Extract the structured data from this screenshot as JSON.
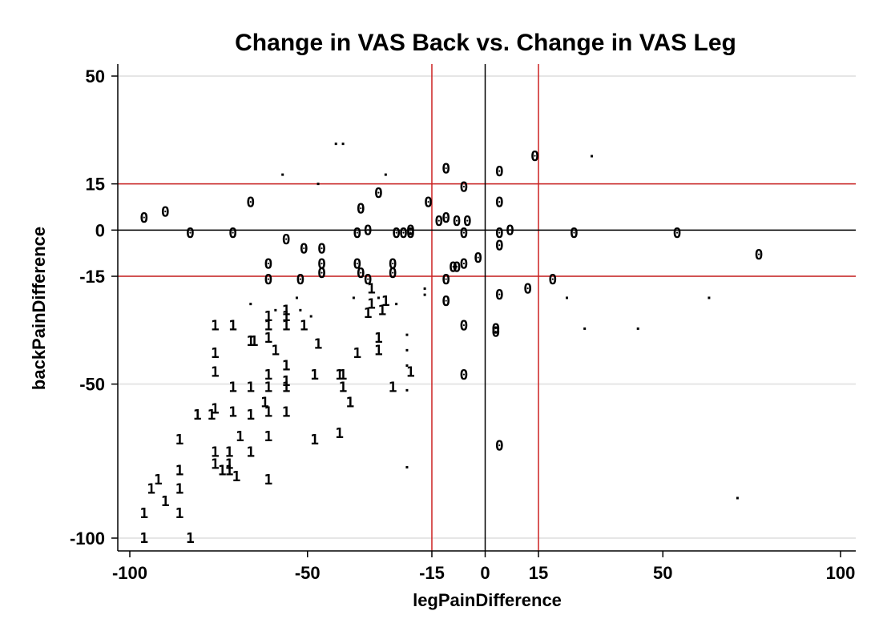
{
  "chart_data": {
    "type": "scatter",
    "title": "Change in VAS Back vs. Change in VAS Leg",
    "xlabel": "legPainDifference",
    "ylabel": "backPainDifference",
    "xlim": [
      -100,
      100
    ],
    "ylim": [
      -100,
      50
    ],
    "x_ticks": [
      -100,
      -50,
      -15,
      0,
      15,
      50,
      100
    ],
    "x_tick_labels": [
      "-100",
      "-50",
      "-15",
      "0",
      "15",
      "50",
      "100"
    ],
    "y_ticks": [
      -100,
      -50,
      -15,
      0,
      15,
      50
    ],
    "y_tick_labels": [
      "-100",
      "-50",
      "-15",
      "0",
      "15",
      "50"
    ],
    "grid": true,
    "reference_lines": {
      "red": {
        "x": [
          -15,
          15
        ],
        "y": [
          -15,
          15
        ],
        "color": "#cc2222"
      },
      "black": {
        "x": [
          0
        ],
        "y": [
          0
        ],
        "color": "#000000"
      }
    },
    "series": [
      {
        "name": "0",
        "marker": "0",
        "points": [
          [
            -96,
            4
          ],
          [
            -90,
            6
          ],
          [
            -83,
            -1
          ],
          [
            -71,
            -1
          ],
          [
            -66,
            9
          ],
          [
            -56,
            -3
          ],
          [
            -51,
            -6
          ],
          [
            -46,
            -6
          ],
          [
            -61,
            -11
          ],
          [
            -61,
            -16
          ],
          [
            -52,
            -16
          ],
          [
            -46,
            -11
          ],
          [
            -46,
            -14
          ],
          [
            -36,
            -11
          ],
          [
            -35,
            7
          ],
          [
            -35,
            -14
          ],
          [
            -36,
            -1
          ],
          [
            -33,
            -16
          ],
          [
            -33,
            0
          ],
          [
            -30,
            12
          ],
          [
            -26,
            -11
          ],
          [
            -25,
            -1
          ],
          [
            -26,
            -14
          ],
          [
            -23,
            -1
          ],
          [
            -21,
            0
          ],
          [
            -21,
            -1
          ],
          [
            -16,
            9
          ],
          [
            -13,
            3
          ],
          [
            -11,
            20
          ],
          [
            -11,
            4
          ],
          [
            -8,
            3
          ],
          [
            -9,
            -12
          ],
          [
            -8,
            -12
          ],
          [
            -6,
            14
          ],
          [
            -5,
            3
          ],
          [
            -6,
            -11
          ],
          [
            -6,
            -1
          ],
          [
            -2,
            -9
          ],
          [
            -11,
            -16
          ],
          [
            -11,
            -23
          ],
          [
            -6,
            -31
          ],
          [
            -6,
            -47
          ],
          [
            3,
            -32
          ],
          [
            3,
            -33
          ],
          [
            4,
            19
          ],
          [
            4,
            9
          ],
          [
            4,
            -1
          ],
          [
            4,
            -5
          ],
          [
            7,
            0
          ],
          [
            4,
            -21
          ],
          [
            4,
            -70
          ],
          [
            12,
            -19
          ],
          [
            14,
            24
          ],
          [
            19,
            -16
          ],
          [
            25,
            -1
          ],
          [
            54,
            -1
          ],
          [
            77,
            -8
          ]
        ]
      },
      {
        "name": "1",
        "marker": "1",
        "points": [
          [
            -96,
            -100
          ],
          [
            -96,
            -92
          ],
          [
            -94,
            -84
          ],
          [
            -92,
            -81
          ],
          [
            -90,
            -88
          ],
          [
            -86,
            -84
          ],
          [
            -86,
            -78
          ],
          [
            -86,
            -92
          ],
          [
            -86,
            -68
          ],
          [
            -83,
            -100
          ],
          [
            -81,
            -60
          ],
          [
            -77,
            -60
          ],
          [
            -76,
            -76
          ],
          [
            -76,
            -72
          ],
          [
            -76,
            -31
          ],
          [
            -76,
            -40
          ],
          [
            -76,
            -46
          ],
          [
            -76,
            -58
          ],
          [
            -74,
            -78
          ],
          [
            -72,
            -72
          ],
          [
            -72,
            -76
          ],
          [
            -72,
            -78
          ],
          [
            -70,
            -80
          ],
          [
            -71,
            -31
          ],
          [
            -71,
            -59
          ],
          [
            -71,
            -51
          ],
          [
            -69,
            -67
          ],
          [
            -66,
            -72
          ],
          [
            -66,
            -51
          ],
          [
            -66,
            -60
          ],
          [
            -66,
            -36
          ],
          [
            -65,
            -36
          ],
          [
            -62,
            -56
          ],
          [
            -61,
            -28
          ],
          [
            -61,
            -31
          ],
          [
            -61,
            -35
          ],
          [
            -61,
            -47
          ],
          [
            -61,
            -51
          ],
          [
            -61,
            -59
          ],
          [
            -59,
            -39
          ],
          [
            -56,
            -31
          ],
          [
            -56,
            -28
          ],
          [
            -56,
            -26
          ],
          [
            -56,
            -44
          ],
          [
            -56,
            -49
          ],
          [
            -56,
            -51
          ],
          [
            -56,
            -59
          ],
          [
            -61,
            -67
          ],
          [
            -61,
            -81
          ],
          [
            -51,
            -31
          ],
          [
            -47,
            -37
          ],
          [
            -48,
            -47
          ],
          [
            -48,
            -68
          ],
          [
            -41,
            -47
          ],
          [
            -40,
            -47
          ],
          [
            -40,
            -51
          ],
          [
            -38,
            -56
          ],
          [
            -41,
            -66
          ],
          [
            -36,
            -40
          ],
          [
            -33,
            -27
          ],
          [
            -32,
            -24
          ],
          [
            -30,
            -35
          ],
          [
            -30,
            -39
          ],
          [
            -29,
            -26
          ],
          [
            -28,
            -23
          ],
          [
            -26,
            -51
          ],
          [
            -21,
            -46
          ],
          [
            -32,
            -19
          ]
        ]
      },
      {
        "name": ".",
        "marker": ".",
        "points": [
          [
            -42,
            28
          ],
          [
            -40,
            28
          ],
          [
            -57,
            18
          ],
          [
            -47,
            15
          ],
          [
            -28,
            18
          ],
          [
            30,
            24
          ],
          [
            -66,
            -24
          ],
          [
            -59,
            -26
          ],
          [
            -53,
            -22
          ],
          [
            -37,
            -22
          ],
          [
            -30,
            -22
          ],
          [
            -25,
            -24
          ],
          [
            -22,
            -34
          ],
          [
            -22,
            -39
          ],
          [
            -22,
            -44
          ],
          [
            -22,
            -52
          ],
          [
            -22,
            -77
          ],
          [
            -17,
            -21
          ],
          [
            -17,
            -19
          ],
          [
            23,
            -22
          ],
          [
            28,
            -32
          ],
          [
            43,
            -32
          ],
          [
            63,
            -22
          ],
          [
            71,
            -87
          ],
          [
            -52,
            -26
          ],
          [
            -49,
            -28
          ]
        ]
      }
    ]
  }
}
